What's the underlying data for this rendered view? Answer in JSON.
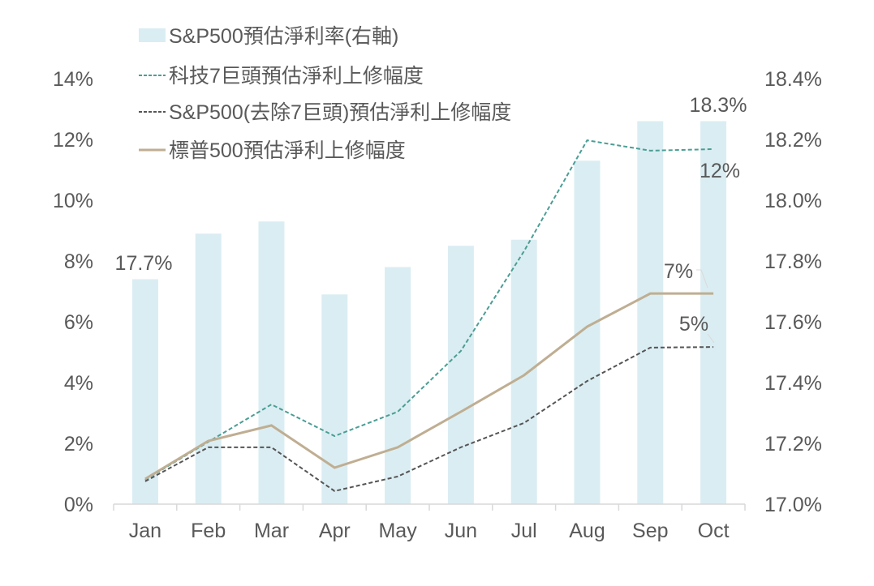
{
  "chart_data": {
    "type": "bar+line",
    "categories": [
      "Jan",
      "Feb",
      "Mar",
      "Apr",
      "May",
      "Jun",
      "Jul",
      "Aug",
      "Sep",
      "Oct"
    ],
    "left_axis": {
      "ylim": [
        0,
        14
      ],
      "ticks": [
        0,
        2,
        4,
        6,
        8,
        10,
        12,
        14
      ],
      "tick_labels": [
        "0%",
        "2%",
        "4%",
        "6%",
        "8%",
        "10%",
        "12%",
        "14%"
      ]
    },
    "right_axis": {
      "ylim": [
        17.0,
        18.4
      ],
      "ticks": [
        17.0,
        17.2,
        17.4,
        17.6,
        17.8,
        18.0,
        18.2,
        18.4
      ],
      "tick_labels": [
        "17.0%",
        "17.2%",
        "17.4%",
        "17.6%",
        "17.8%",
        "18.0%",
        "18.2%",
        "18.4%"
      ]
    },
    "bars": {
      "name": "S&P500預估淨利率(右軸)",
      "axis": "right",
      "color": "#daedf2",
      "values": [
        17.74,
        17.89,
        17.93,
        17.69,
        17.78,
        17.85,
        17.87,
        18.13,
        18.26,
        18.26
      ]
    },
    "series": [
      {
        "name": "科技7巨頭預估淨利上修幅度",
        "axis": "left",
        "color": "#4a9e94",
        "dash": true,
        "values": [
          0.8,
          2.05,
          3.28,
          2.24,
          3.04,
          5.04,
          8.32,
          11.97,
          11.63,
          11.68
        ]
      },
      {
        "name": "S&P500(去除7巨頭)預估淨利上修幅度",
        "axis": "left",
        "color": "#555555",
        "dash": true,
        "values": [
          0.75,
          1.87,
          1.87,
          0.43,
          0.91,
          1.87,
          2.67,
          4.05,
          5.15,
          5.17
        ]
      },
      {
        "name": "標普500預估淨利上修幅度",
        "axis": "left",
        "color": "#bfae92",
        "dash": false,
        "values": [
          0.83,
          2.08,
          2.59,
          1.2,
          1.87,
          3.04,
          4.24,
          5.84,
          6.93,
          6.93
        ]
      }
    ],
    "annotations": [
      "17.7%",
      "18.3%",
      "12%",
      "7%",
      "5%"
    ],
    "legend_placement": "top-left"
  }
}
